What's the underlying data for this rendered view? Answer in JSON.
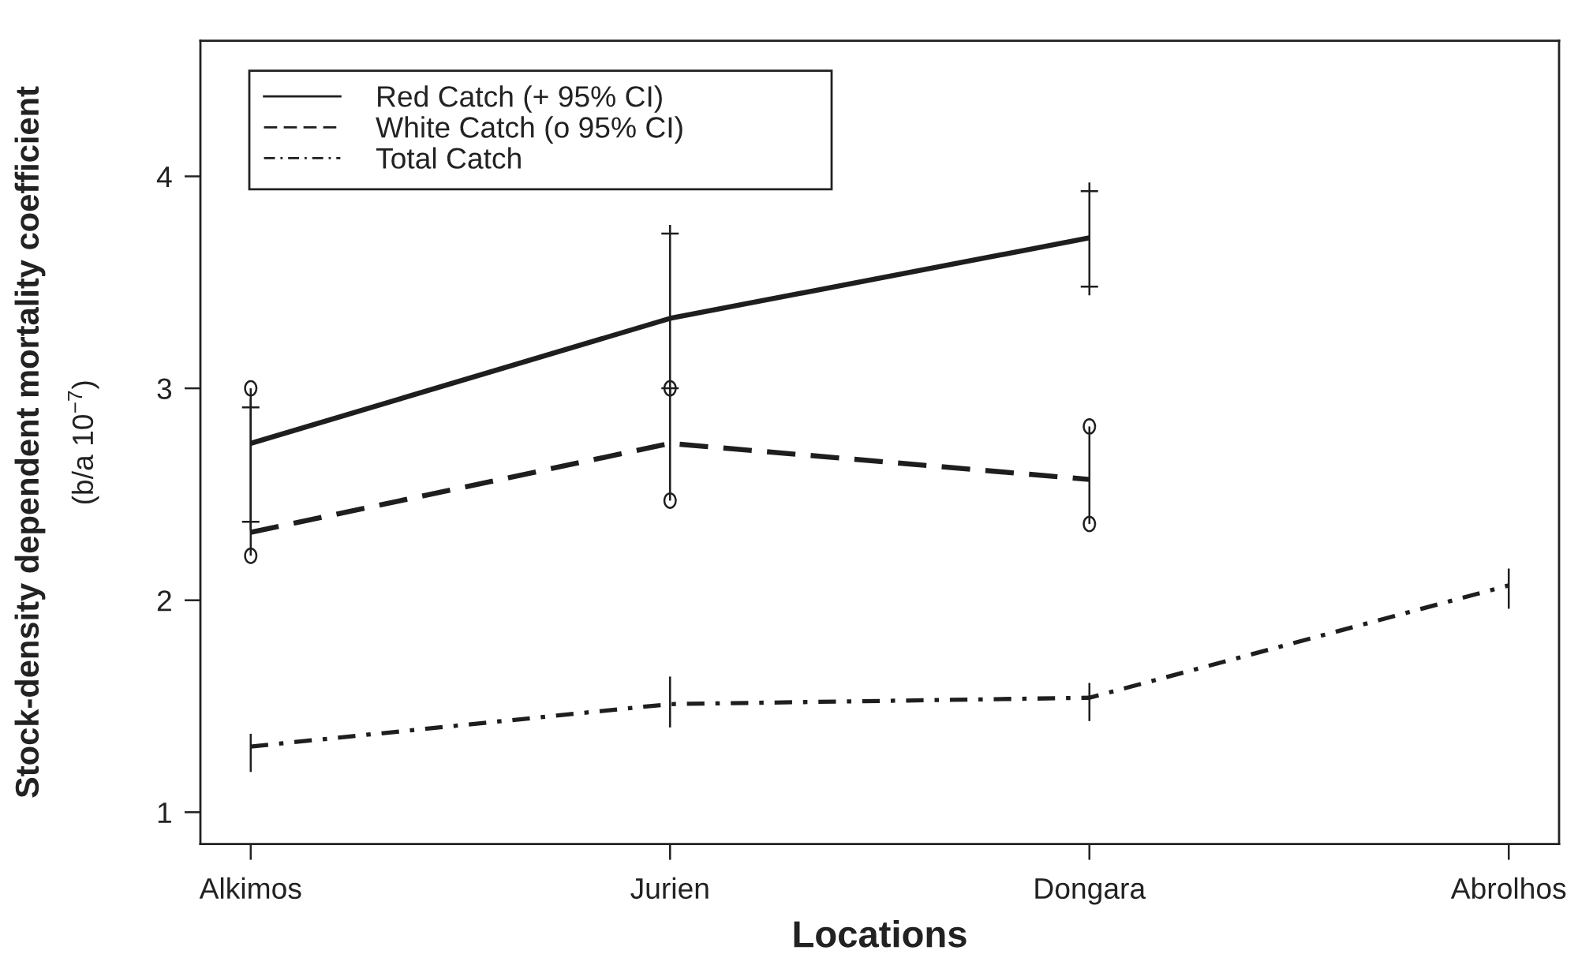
{
  "chart_data": {
    "type": "line",
    "xlabel": "Locations",
    "ylabel": "Stock-density dependent mortality coefficient\n(b/a 10$^{−7}$)",
    "categories": [
      "Alkimos",
      "Jurien",
      "Dongara",
      "Abrolhos"
    ],
    "series": [
      {
        "name": "Red Catch (+ 95% CI)",
        "color": "#1e1e1e",
        "line_style": "solid",
        "values": [
          2.74,
          3.33,
          3.71,
          null
        ],
        "errors": [
          [
            2.37,
            2.91
          ],
          [
            3.0,
            3.73
          ],
          [
            3.48,
            3.93
          ],
          null
        ]
      },
      {
        "name": "White Catch (o 95% CI)",
        "color": "#1e1e1e",
        "line_style": "dashed",
        "values": [
          2.32,
          2.74,
          2.57,
          null
        ],
        "errors": [
          [
            2.21,
            3.0
          ],
          [
            2.47,
            3.0
          ],
          [
            2.36,
            2.82
          ],
          null
        ]
      },
      {
        "name": "Total Catch",
        "color": "#1e1e1e",
        "line_style": "dashdot",
        "values": [
          1.31,
          1.51,
          1.54,
          2.07
        ],
        "errors": [
          [
            1.19,
            1.37
          ],
          [
            1.4,
            1.64
          ],
          [
            1.43,
            1.61
          ],
          [
            1.96,
            2.15
          ]
        ]
      }
    ],
    "ylim": [
      0.85,
      4.64
    ],
    "yticks": [
      1,
      2,
      3,
      4
    ],
    "grid": false,
    "legend": "top left"
  }
}
